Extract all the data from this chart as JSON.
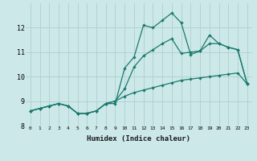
{
  "xlabel": "Humidex (Indice chaleur)",
  "ylabel": "",
  "background_color": "#cce8e8",
  "grid_color": "#b0d0d0",
  "line_color": "#1a7a6e",
  "x_values": [
    0,
    1,
    2,
    3,
    4,
    5,
    6,
    7,
    8,
    9,
    10,
    11,
    12,
    13,
    14,
    15,
    16,
    17,
    18,
    19,
    20,
    21,
    22,
    23
  ],
  "line1": [
    8.6,
    8.7,
    8.8,
    8.9,
    8.8,
    8.5,
    8.5,
    8.6,
    8.9,
    8.9,
    10.35,
    10.8,
    12.1,
    12.0,
    12.3,
    12.6,
    12.2,
    10.9,
    11.05,
    11.7,
    11.35,
    11.2,
    11.1,
    9.7
  ],
  "line2": [
    8.6,
    8.7,
    8.8,
    8.9,
    8.8,
    8.5,
    8.5,
    8.6,
    8.9,
    9.0,
    9.2,
    9.35,
    9.45,
    9.55,
    9.65,
    9.75,
    9.85,
    9.9,
    9.95,
    10.0,
    10.05,
    10.1,
    10.15,
    9.7
  ],
  "line3": [
    8.6,
    8.7,
    8.8,
    8.9,
    8.8,
    8.5,
    8.5,
    8.6,
    8.9,
    9.0,
    9.5,
    10.4,
    10.85,
    11.1,
    11.35,
    11.55,
    10.95,
    11.0,
    11.05,
    11.35,
    11.35,
    11.2,
    11.1,
    9.7
  ],
  "ylim": [
    8.0,
    13.0
  ],
  "xlim": [
    -0.5,
    23.5
  ],
  "yticks": [
    8,
    9,
    10,
    11,
    12
  ],
  "xticks": [
    0,
    1,
    2,
    3,
    4,
    5,
    6,
    7,
    8,
    9,
    10,
    11,
    12,
    13,
    14,
    15,
    16,
    17,
    18,
    19,
    20,
    21,
    22,
    23
  ]
}
